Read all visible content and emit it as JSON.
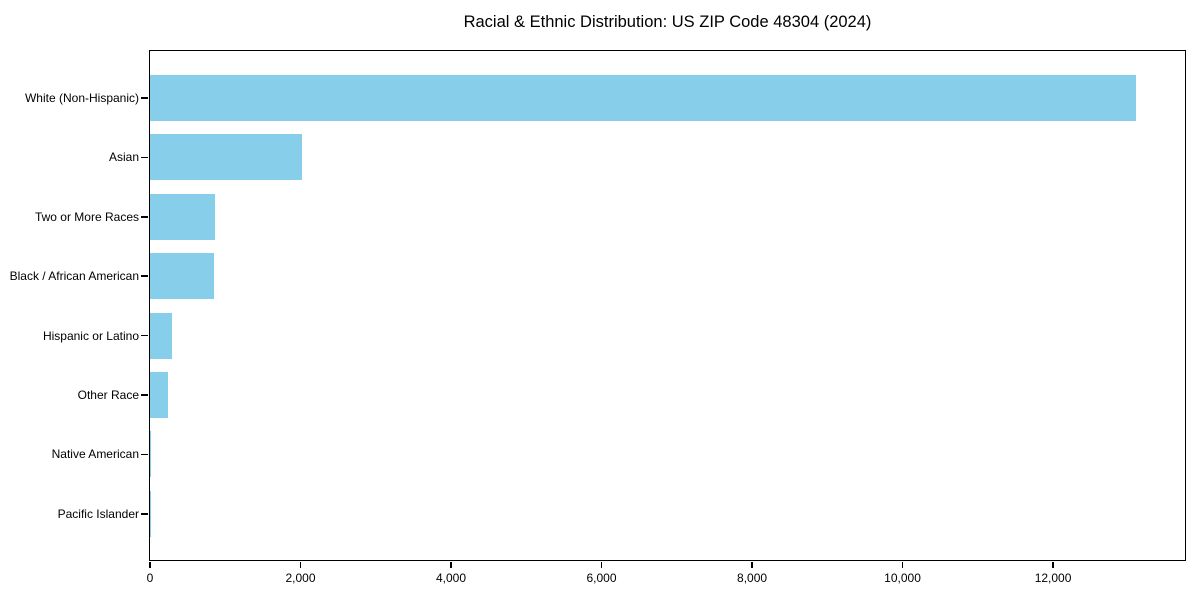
{
  "title": "Racial & Ethnic Distribution: US ZIP Code 48304 (2024)",
  "chart_data": {
    "type": "bar",
    "orientation": "horizontal",
    "title": "Racial & Ethnic Distribution: US ZIP Code 48304 (2024)",
    "xlabel": "",
    "ylabel": "",
    "categories": [
      "White (Non-Hispanic)",
      "Asian",
      "Two or More Races",
      "Black / African American",
      "Hispanic or Latino",
      "Other Race",
      "Native American",
      "Pacific Islander"
    ],
    "values": [
      13100,
      2020,
      870,
      855,
      292,
      235,
      12,
      4
    ],
    "xlim": [
      0,
      13780
    ],
    "xticks": [
      0,
      2000,
      4000,
      6000,
      8000,
      10000,
      12000
    ],
    "xtick_labels": [
      "0",
      "2,000",
      "4,000",
      "6,000",
      "8,000",
      "10,000",
      "12,000"
    ],
    "bar_color": "#87CEEB",
    "grid": false,
    "legend": null
  }
}
